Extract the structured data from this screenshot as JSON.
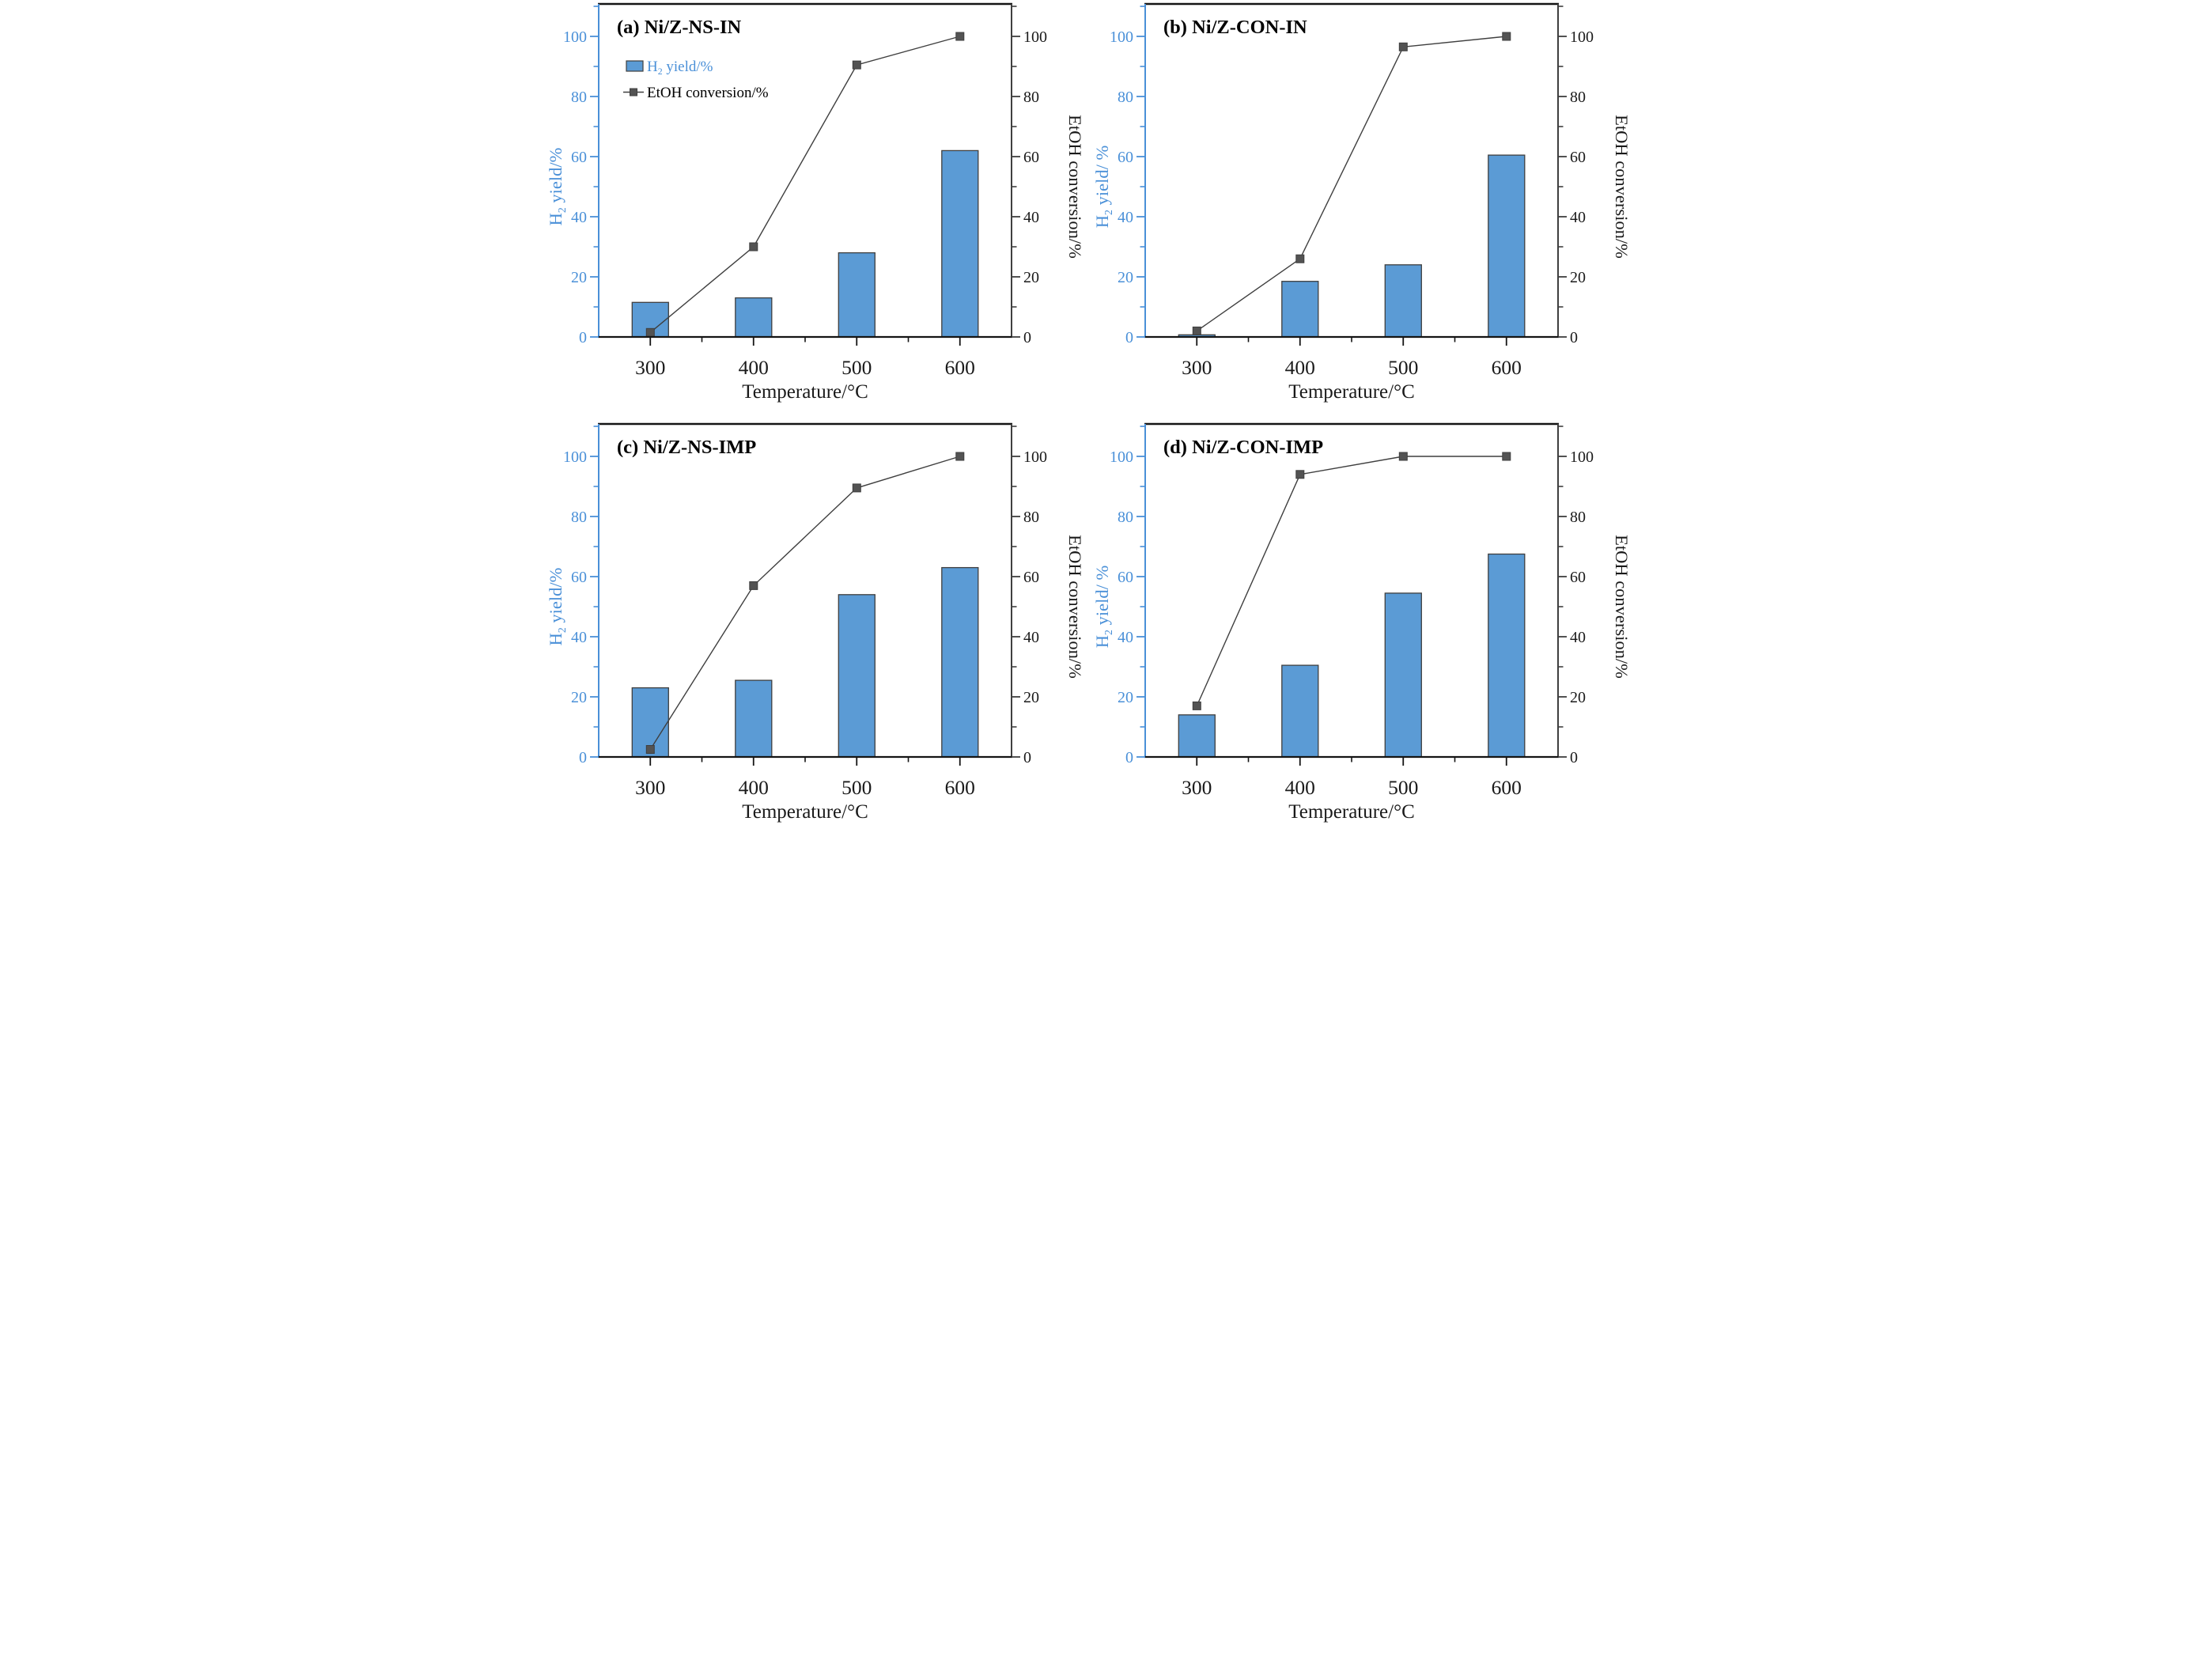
{
  "style": {
    "bar_fill": "#5b9bd5",
    "bar_stroke": "#3f3f3f",
    "axis_blue": "#4a90d8",
    "line_color": "#3f3f3f",
    "marker_fill": "#535353",
    "frame_color": "#141414",
    "dark_text": "#1a1a1a",
    "background": "#ffffff"
  },
  "axes": {
    "x_label": "Temperature/°C",
    "x_ticks": [
      300,
      400,
      500,
      600
    ],
    "x_minor_ticks": [
      350,
      450,
      550
    ],
    "y_major_ticks": [
      0,
      20,
      40,
      60,
      80,
      100
    ],
    "y_minor_ticks": [
      10,
      30,
      50,
      70,
      90,
      110
    ],
    "x_range": [
      250,
      650
    ],
    "y_range": [
      0,
      113
    ]
  },
  "legend": {
    "bar_label": "H2 yield/%",
    "line_label": "EtOH conversion/%"
  },
  "chart_data": [
    {
      "panel": "a",
      "type": "bar+line",
      "title": "(a) Ni/Z-NS-IN",
      "categories": [
        300,
        400,
        500,
        600
      ],
      "xlabel": "Temperature/°C",
      "ylabel_left": "H2 yield/%",
      "ylabel_right": "EtOH conversion/%",
      "ylim_left": [
        0,
        100
      ],
      "ylim_right": [
        0,
        100
      ],
      "legend": true,
      "legend_position": "upper-left",
      "series": [
        {
          "name": "H2 yield/%",
          "type": "bar",
          "axis": "left",
          "values": [
            11.5,
            13,
            28,
            62
          ]
        },
        {
          "name": "EtOH conversion/%",
          "type": "line",
          "axis": "right",
          "values": [
            1.5,
            30,
            90.5,
            100
          ]
        }
      ]
    },
    {
      "panel": "b",
      "type": "bar+line",
      "title": "(b) Ni/Z-CON-IN",
      "categories": [
        300,
        400,
        500,
        600
      ],
      "xlabel": "Temperature/°C",
      "ylabel_left": "H2 yield/ %",
      "ylabel_right": "EtOH conversion/%",
      "ylim_left": [
        0,
        100
      ],
      "ylim_right": [
        0,
        100
      ],
      "legend": false,
      "series": [
        {
          "name": "H2 yield/%",
          "type": "bar",
          "axis": "left",
          "values": [
            0.7,
            18.5,
            24,
            60.5
          ]
        },
        {
          "name": "EtOH conversion/%",
          "type": "line",
          "axis": "right",
          "values": [
            2,
            26,
            96.5,
            100
          ]
        }
      ]
    },
    {
      "panel": "c",
      "type": "bar+line",
      "title": "(c) Ni/Z-NS-IMP",
      "categories": [
        300,
        400,
        500,
        600
      ],
      "xlabel": "Temperature/°C",
      "ylabel_left": "H2 yield/%",
      "ylabel_right": "EtOH conversion/%",
      "ylim_left": [
        0,
        100
      ],
      "ylim_right": [
        0,
        100
      ],
      "legend": false,
      "series": [
        {
          "name": "H2 yield/%",
          "type": "bar",
          "axis": "left",
          "values": [
            23,
            25.5,
            54,
            63
          ]
        },
        {
          "name": "EtOH conversion/%",
          "type": "line",
          "axis": "right",
          "values": [
            2.5,
            57,
            89.5,
            100
          ]
        }
      ]
    },
    {
      "panel": "d",
      "type": "bar+line",
      "title": "(d) Ni/Z-CON-IMP",
      "categories": [
        300,
        400,
        500,
        600
      ],
      "xlabel": "Temperature/°C",
      "ylabel_left": "H2 yield/ %",
      "ylabel_right": "EtOH conversion/%",
      "ylim_left": [
        0,
        100
      ],
      "ylim_right": [
        0,
        100
      ],
      "legend": false,
      "series": [
        {
          "name": "H2 yield/%",
          "type": "bar",
          "axis": "left",
          "values": [
            14,
            30.5,
            54.5,
            67.5
          ]
        },
        {
          "name": "EtOH conversion/%",
          "type": "line",
          "axis": "right",
          "values": [
            17,
            94,
            100,
            100
          ]
        }
      ]
    }
  ]
}
